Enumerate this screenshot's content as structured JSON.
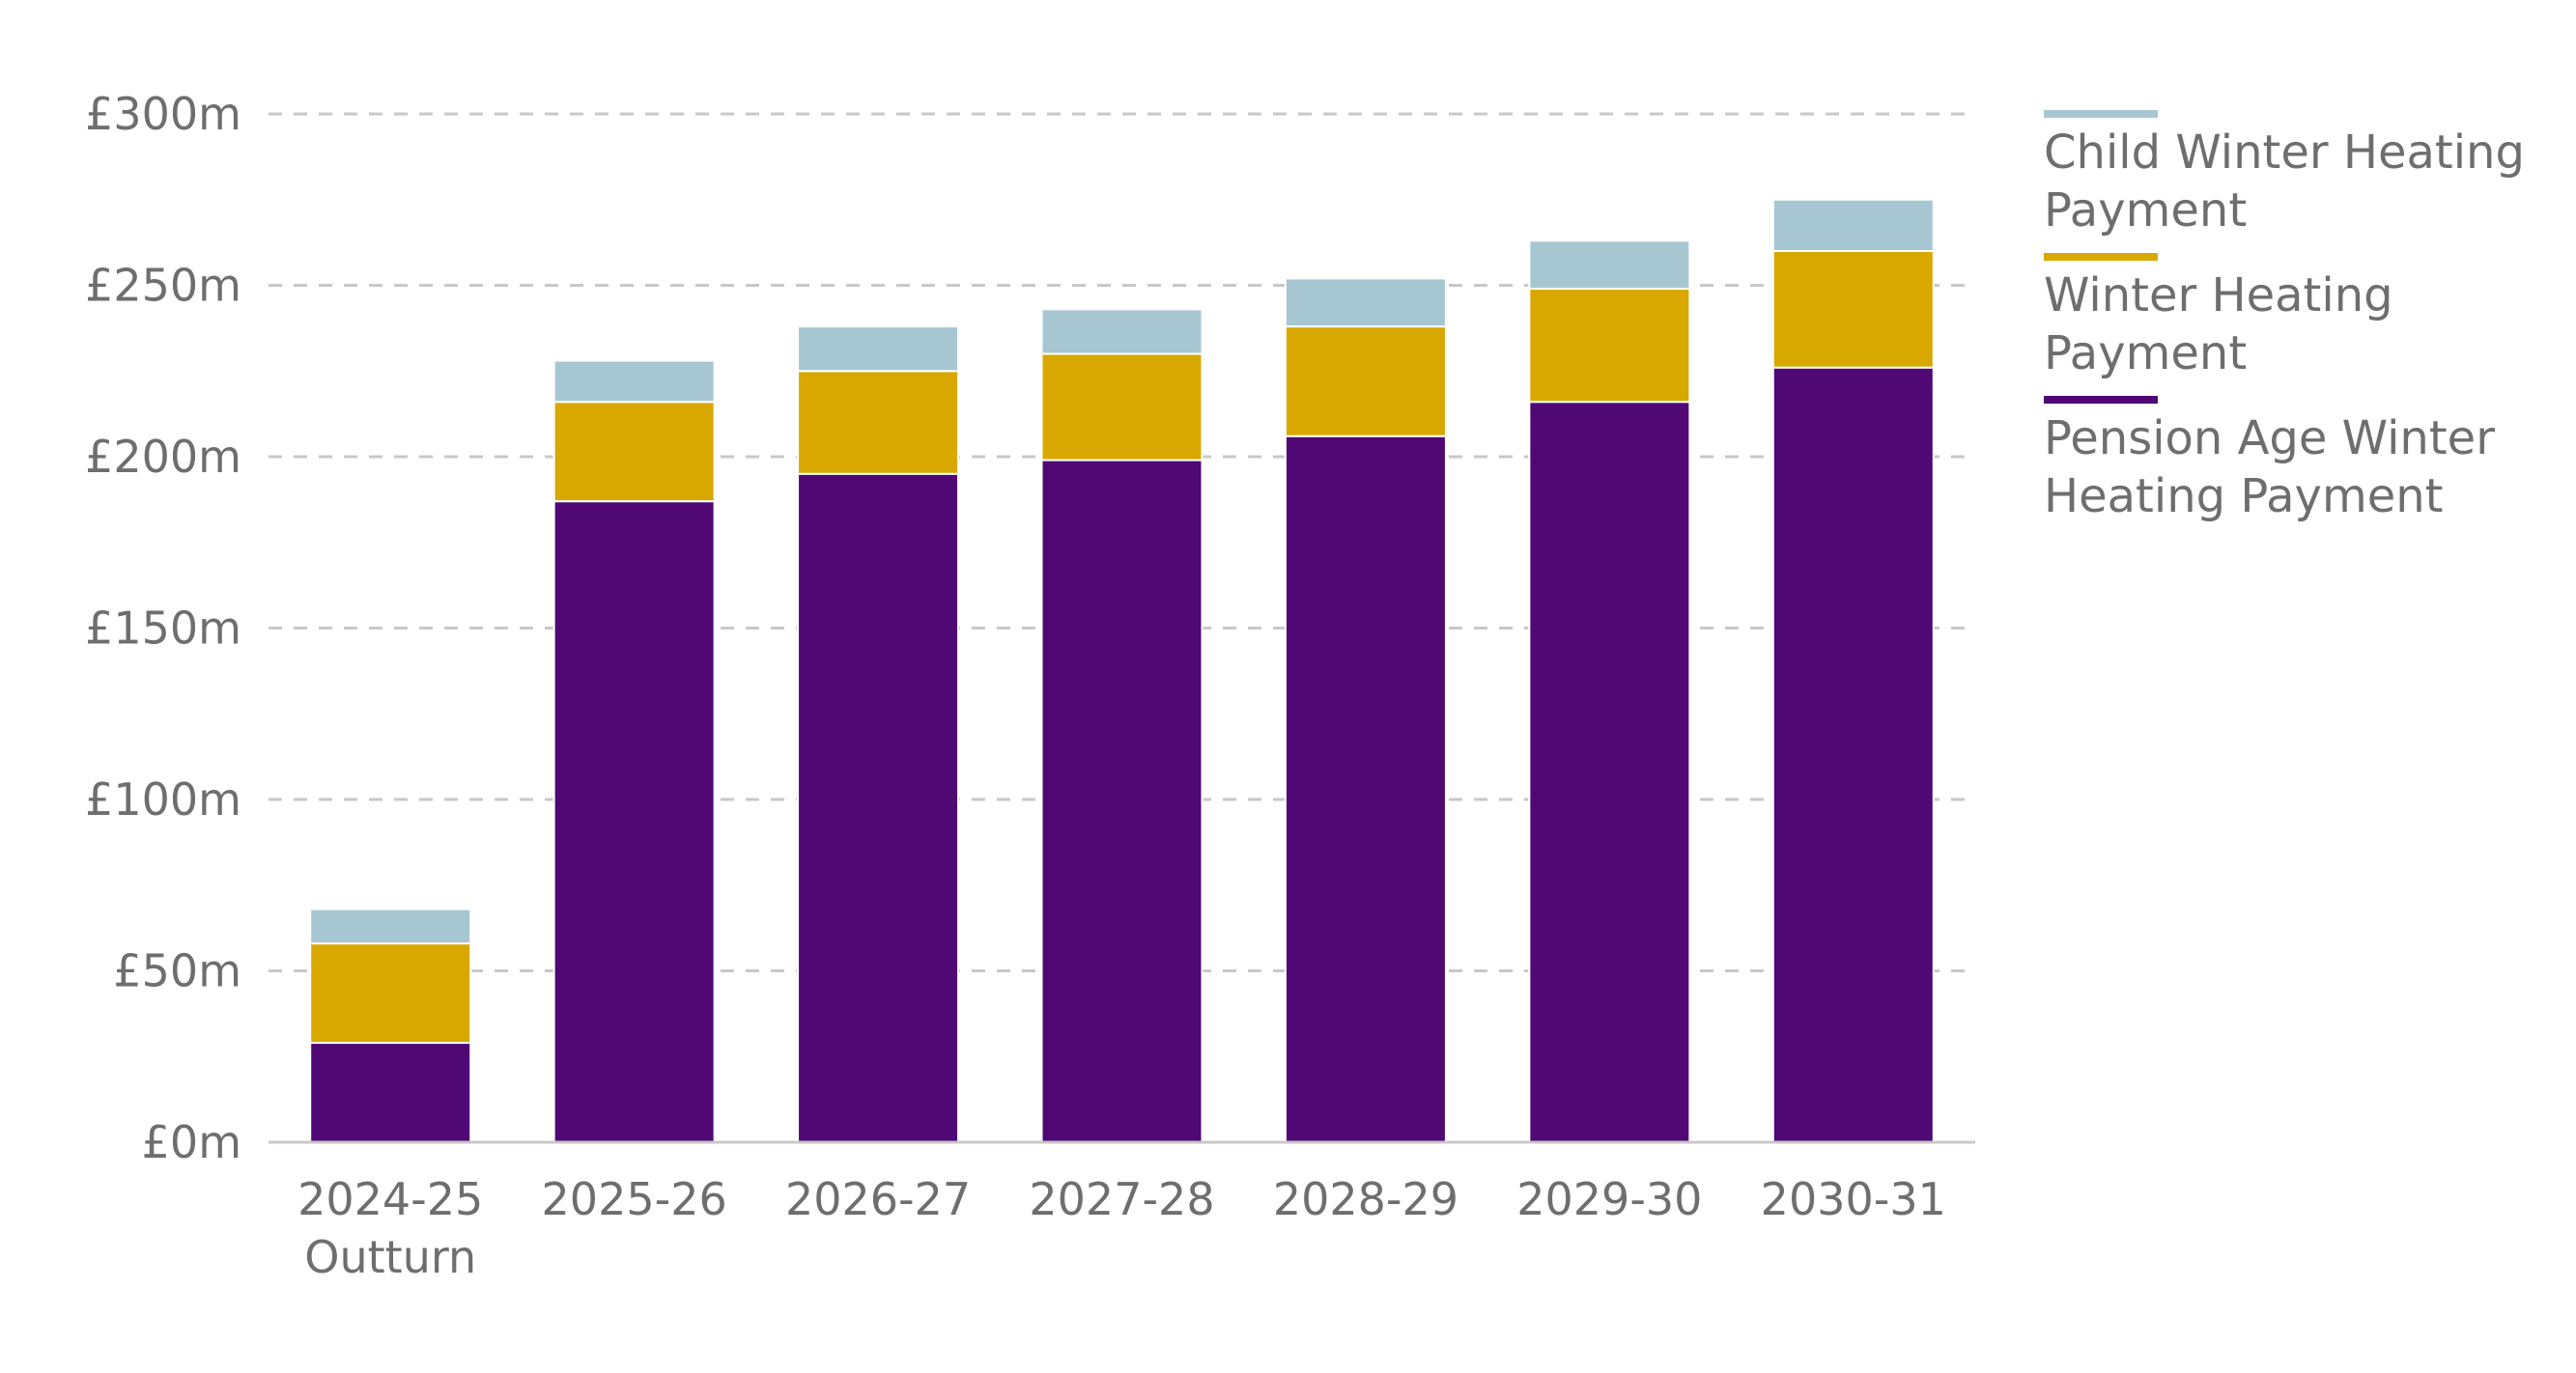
{
  "chart_data": {
    "type": "bar",
    "stacked": true,
    "categories": [
      [
        "2024-25",
        "Outturn"
      ],
      [
        "2025-26"
      ],
      [
        "2026-27"
      ],
      [
        "2027-28"
      ],
      [
        "2028-29"
      ],
      [
        "2029-30"
      ],
      [
        "2030-31"
      ]
    ],
    "series": [
      {
        "name": "Pension Age Winter Heating Payment",
        "legend_lines": [
          "Pension Age Winter",
          "Heating Payment"
        ],
        "color": "#4f0874",
        "values": [
          29,
          187,
          195,
          199,
          206,
          216,
          226
        ]
      },
      {
        "name": "Winter Heating Payment",
        "legend_lines": [
          "Winter Heating",
          "Payment"
        ],
        "color": "#d8a800",
        "values": [
          29,
          29,
          30,
          31,
          32,
          33,
          34
        ]
      },
      {
        "name": "Child Winter Heating Payment",
        "legend_lines": [
          "Child Winter Heating",
          "Payment"
        ],
        "color": "#a6c7d2",
        "values": [
          10,
          12,
          13,
          13,
          14,
          14,
          15
        ]
      }
    ],
    "y_ticks": [
      {
        "value": 0,
        "label": "£0m"
      },
      {
        "value": 50,
        "label": "£50m"
      },
      {
        "value": 100,
        "label": "£100m"
      },
      {
        "value": 150,
        "label": "£150m"
      },
      {
        "value": 200,
        "label": "£200m"
      },
      {
        "value": 250,
        "label": "£250m"
      },
      {
        "value": 300,
        "label": "£300m"
      }
    ],
    "ylim": [
      0,
      300
    ],
    "grid": true,
    "legend_placement": "top-right",
    "title": "",
    "xlabel": "",
    "ylabel": ""
  }
}
